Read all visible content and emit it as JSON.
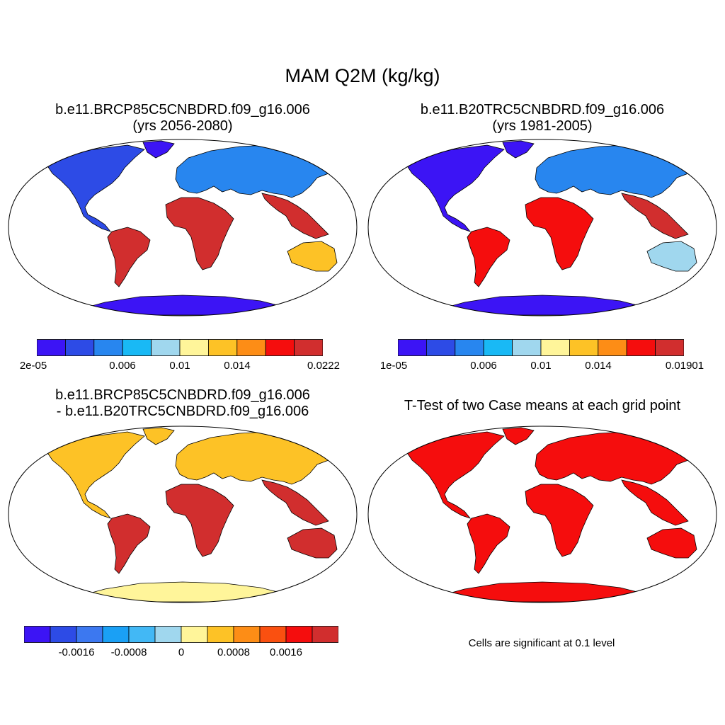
{
  "figure": {
    "title": "MAM Q2M (kg/kg)"
  },
  "panels": [
    {
      "id": "future",
      "title_line1": "b.e11.BRCP85C5CNBDRD.f09_g16.006",
      "title_line2": "(yrs 2056-2080)",
      "palette": [
        "#3c14f5",
        "#2d4be6",
        "#2886ef",
        "#19b9f5",
        "#a0d7ee",
        "#fff59a",
        "#fdc226",
        "#fd8d16",
        "#f50d0d",
        "#d12e2e"
      ],
      "region_colors": {
        "north_america": "#2d4be6",
        "greenland": "#3c14f5",
        "eurasia": "#2886ef",
        "africa": "#d12e2e",
        "south_america": "#d12e2e",
        "australia": "#fdc226",
        "antarctica": "#3c14f5",
        "south_asia": "#d12e2e"
      },
      "colorbar_ticks": [
        "2e-05",
        "0.006",
        "0.01",
        "0.014",
        "0.0222"
      ]
    },
    {
      "id": "historical",
      "title_line1": "b.e11.B20TRC5CNBDRD.f09_g16.006",
      "title_line2": "(yrs 1981-2005)",
      "palette": [
        "#3c14f5",
        "#2d4be6",
        "#2886ef",
        "#19b9f5",
        "#a0d7ee",
        "#fff59a",
        "#fdc226",
        "#fd8d16",
        "#f50d0d",
        "#d12e2e"
      ],
      "region_colors": {
        "north_america": "#3c14f5",
        "greenland": "#3c14f5",
        "eurasia": "#2886ef",
        "africa": "#f50d0d",
        "south_america": "#f50d0d",
        "australia": "#a0d7ee",
        "antarctica": "#3c14f5",
        "south_asia": "#d12e2e"
      },
      "colorbar_ticks": [
        "1e-05",
        "0.006",
        "0.01",
        "0.014",
        "0.01901"
      ]
    },
    {
      "id": "difference",
      "title_line1": "b.e11.BRCP85C5CNBDRD.f09_g16.006",
      "title_line2": "- b.e11.B20TRC5CNBDRD.f09_g16.006",
      "palette": [
        "#3c14f5",
        "#2d4be6",
        "#3c78f0",
        "#1aa0f5",
        "#42b8f5",
        "#a0d7ee",
        "#fff59a",
        "#fdc226",
        "#fd8d16",
        "#fa5010",
        "#f50d0d",
        "#d12e2e"
      ],
      "region_colors": {
        "north_america": "#fdc226",
        "greenland": "#fdc226",
        "eurasia": "#fdc226",
        "africa": "#d12e2e",
        "south_america": "#d12e2e",
        "australia": "#d12e2e",
        "antarctica": "#fff59a",
        "south_asia": "#d12e2e"
      },
      "colorbar_ticks": [
        "-0.0016",
        "-0.0008",
        "0",
        "0.0008",
        "0.0016"
      ]
    },
    {
      "id": "ttest",
      "title_line1": "T-Test of two Case means at each grid point",
      "title_line2": "",
      "region_colors": {
        "north_america": "#f50d0d",
        "greenland": "#f50d0d",
        "eurasia": "#f50d0d",
        "africa": "#f50d0d",
        "south_america": "#f50d0d",
        "australia": "#f50d0d",
        "antarctica": "#f50d0d",
        "south_asia": "#f50d0d"
      },
      "note": "Cells are significant at 0.1 level"
    }
  ]
}
